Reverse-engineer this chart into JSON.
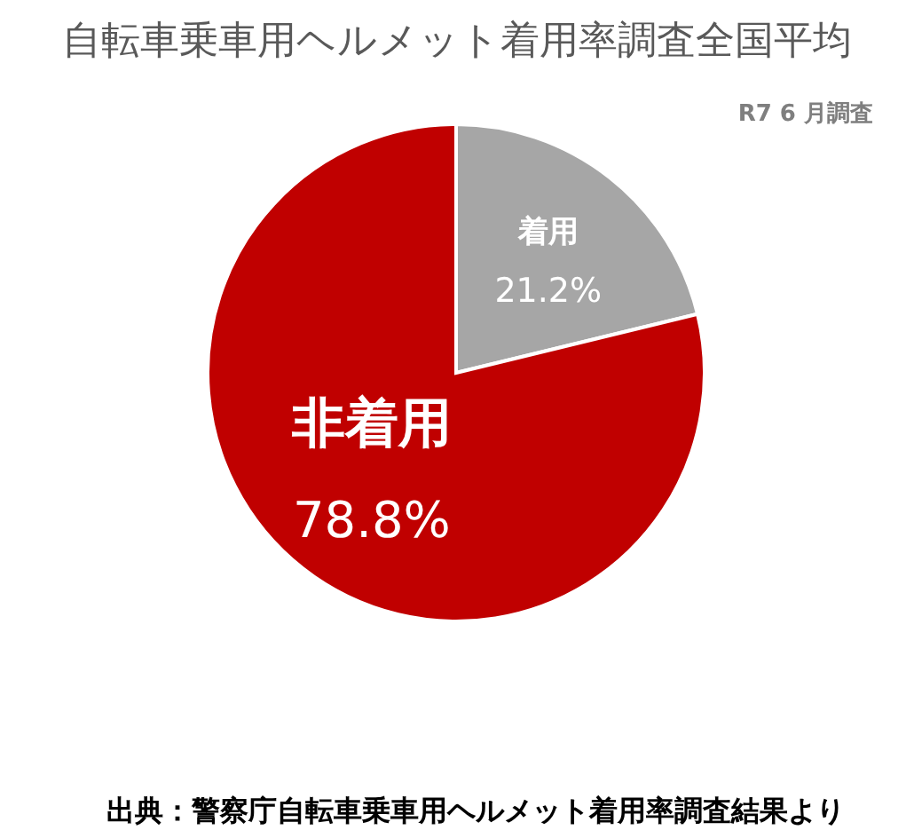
{
  "chart_data": {
    "type": "pie",
    "title": "自転車乗車用ヘルメット着用率調査全国平均",
    "subtitle": "R7 6 月調査",
    "categories": [
      "着用",
      "非着用"
    ],
    "values": [
      21.2,
      78.8
    ],
    "value_labels": [
      "21.2%",
      "78.8%"
    ],
    "colors": [
      "#a6a6a6",
      "#c00000"
    ],
    "annotations": [
      "出典：警察庁自転車乗車用ヘルメット着用率調査結果より"
    ]
  }
}
